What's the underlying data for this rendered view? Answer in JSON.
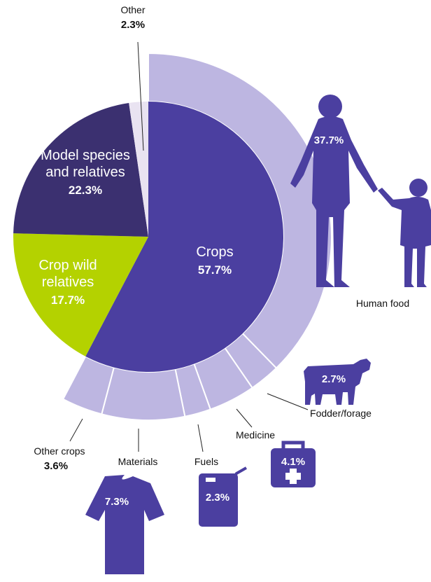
{
  "chart_data": {
    "type": "pie",
    "categories": [
      "Crops",
      "Crop wild relatives",
      "Model species and relatives",
      "Other"
    ],
    "values": [
      57.7,
      17.7,
      22.3,
      2.3
    ],
    "value_labels": [
      "57.7%",
      "17.7%",
      "22.3%",
      "2.3%"
    ],
    "colors": [
      "#4b3fa0",
      "#b4d200",
      "#3b3070",
      "#e9e3f1"
    ],
    "breakdown": {
      "categories": [
        "Human food",
        "Fodder/forage",
        "Medicine",
        "Fuels",
        "Materials",
        "Other crops"
      ],
      "values": [
        37.7,
        2.7,
        4.1,
        2.3,
        7.3,
        3.6
      ],
      "value_labels": [
        "37.7%",
        "2.7%",
        "4.1%",
        "2.3%",
        "7.3%",
        "3.6%"
      ],
      "color": "#bdb6e1"
    }
  }
}
